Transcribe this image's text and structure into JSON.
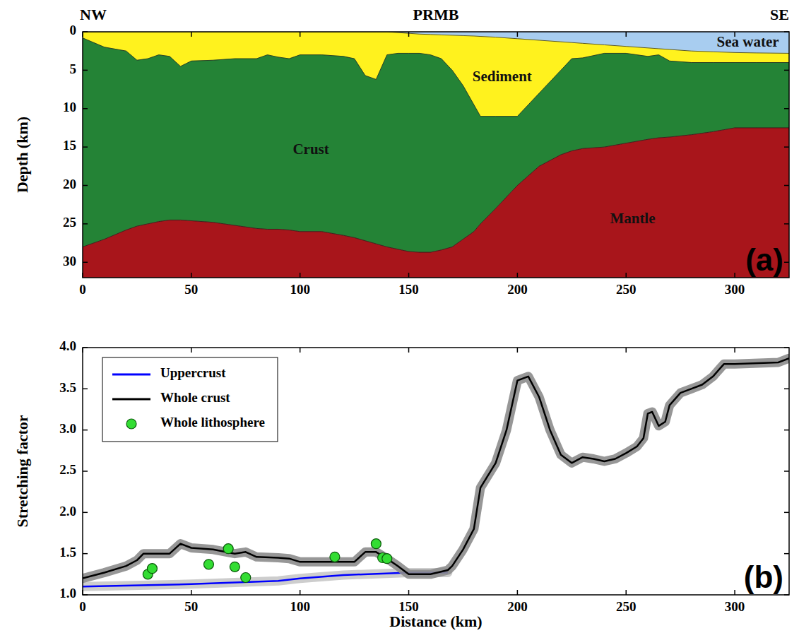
{
  "chart_data": [
    {
      "type": "area",
      "title": "PRMB",
      "left_title": "NW",
      "right_title": "SE",
      "panel_label": "(a)",
      "y_label": "Depth (km)",
      "xlim": [
        0,
        325
      ],
      "xticks": [
        0,
        50,
        100,
        150,
        200,
        250,
        300
      ],
      "ylim": [
        32,
        0
      ],
      "yticks": [
        0,
        5,
        10,
        15,
        20,
        25,
        30
      ],
      "x": [
        0,
        10,
        20,
        25,
        30,
        35,
        40,
        45,
        50,
        60,
        70,
        80,
        85,
        90,
        95,
        100,
        110,
        120,
        125,
        130,
        135,
        140,
        145,
        150,
        155,
        160,
        165,
        170,
        175,
        180,
        183,
        190,
        200,
        210,
        220,
        225,
        230,
        240,
        250,
        260,
        265,
        270,
        280,
        290,
        300,
        310,
        325
      ],
      "series": [
        {
          "name": "Sea water",
          "color": "#a8cdf0",
          "label_x": 306,
          "label_y": 1.5,
          "values": [
            0,
            0,
            0,
            0,
            0,
            0,
            0,
            0,
            0,
            0,
            0,
            0,
            0,
            0,
            0,
            0,
            0,
            0,
            0,
            0,
            0,
            0,
            0.1,
            0.2,
            0.3,
            0.35,
            0.4,
            0.45,
            0.5,
            0.55,
            0.6,
            0.7,
            0.9,
            1.1,
            1.3,
            1.4,
            1.5,
            1.7,
            1.9,
            2.1,
            2.2,
            2.3,
            2.5,
            2.6,
            2.7,
            2.75,
            2.8
          ]
        },
        {
          "name": "Sediment",
          "color": "#fff21e",
          "label_x": 193,
          "label_y": 6,
          "values": [
            0.8,
            2,
            2.5,
            3.7,
            3.5,
            3,
            3.2,
            4.5,
            3.8,
            3.7,
            3.5,
            3.5,
            3,
            3.3,
            3.5,
            3,
            3,
            3.2,
            3.5,
            5.7,
            6.2,
            3,
            2.8,
            2.8,
            2.8,
            3,
            3.5,
            5,
            7,
            9.5,
            11,
            11,
            11,
            8,
            5,
            3.5,
            3.4,
            2.8,
            2.8,
            3.2,
            3,
            3.8,
            4,
            4,
            4,
            4,
            4
          ]
        },
        {
          "name": "Crust",
          "color": "#248336",
          "label_x": 105,
          "label_y": 15.5,
          "values": [
            28,
            27,
            25.8,
            25.3,
            25,
            24.7,
            24.5,
            24.5,
            24.6,
            24.8,
            25.2,
            25.6,
            25.7,
            25.7,
            25.8,
            26,
            26,
            26.5,
            26.8,
            27.2,
            27.6,
            28,
            28.3,
            28.6,
            28.7,
            28.7,
            28.4,
            28,
            27,
            26,
            25,
            23,
            20,
            17.5,
            16,
            15.5,
            15.2,
            15,
            14.5,
            14,
            13.8,
            13.7,
            13.4,
            13,
            12.5,
            12.5,
            12.5
          ]
        },
        {
          "name": "Mantle",
          "color": "#a8151b",
          "label_x": 253,
          "label_y": 24.5
        }
      ]
    },
    {
      "type": "line",
      "panel_label": "(b)",
      "x_label": "Distance (km)",
      "y_label": "Stretching factor",
      "xlim": [
        0,
        325
      ],
      "xticks": [
        0,
        50,
        100,
        150,
        200,
        250,
        300
      ],
      "ylim": [
        1,
        4
      ],
      "yticks": [
        {
          "value": 1,
          "label": "1.0"
        },
        1.5,
        {
          "value": 2,
          "label": "2.0"
        },
        2.5,
        {
          "value": 3,
          "label": "3.0"
        },
        3.5,
        {
          "value": 4,
          "label": "4.0"
        }
      ],
      "legend": "upper left",
      "series": [
        {
          "name": "Uppercrust",
          "color": "#0000ff",
          "type": "line",
          "x": [
            0,
            50,
            90,
            100,
            120,
            150,
            168
          ],
          "values": [
            1.1,
            1.13,
            1.17,
            1.2,
            1.24,
            1.27,
            1.27
          ]
        },
        {
          "name": "Whole crust",
          "color": "#000000",
          "type": "line",
          "x": [
            0,
            10,
            20,
            25,
            28,
            35,
            40,
            45,
            50,
            60,
            70,
            75,
            80,
            90,
            95,
            100,
            110,
            120,
            125,
            130,
            135,
            140,
            145,
            150,
            160,
            168,
            170,
            175,
            180,
            183,
            190,
            195,
            200,
            205,
            210,
            215,
            220,
            225,
            230,
            235,
            240,
            245,
            250,
            255,
            258,
            260,
            262,
            265,
            268,
            270,
            275,
            280,
            285,
            290,
            295,
            300,
            320,
            325
          ],
          "values": [
            1.2,
            1.27,
            1.35,
            1.42,
            1.5,
            1.5,
            1.5,
            1.62,
            1.57,
            1.55,
            1.5,
            1.52,
            1.46,
            1.45,
            1.44,
            1.4,
            1.4,
            1.4,
            1.4,
            1.52,
            1.52,
            1.44,
            1.35,
            1.25,
            1.25,
            1.3,
            1.35,
            1.55,
            1.8,
            2.3,
            2.6,
            3,
            3.6,
            3.65,
            3.4,
            3,
            2.7,
            2.6,
            2.67,
            2.65,
            2.62,
            2.65,
            2.72,
            2.8,
            2.9,
            3.2,
            3.22,
            3.05,
            3.1,
            3.3,
            3.45,
            3.5,
            3.55,
            3.65,
            3.8,
            3.8,
            3.82,
            3.87
          ]
        },
        {
          "name": "Whole lithosphere",
          "color": "#33dd33",
          "type": "scatter",
          "marker": "circle",
          "x": [
            30,
            32,
            58,
            67,
            70,
            75,
            116,
            135,
            138,
            140
          ],
          "values": [
            1.25,
            1.32,
            1.37,
            1.56,
            1.34,
            1.21,
            1.46,
            1.62,
            1.45,
            1.44
          ]
        }
      ]
    }
  ]
}
